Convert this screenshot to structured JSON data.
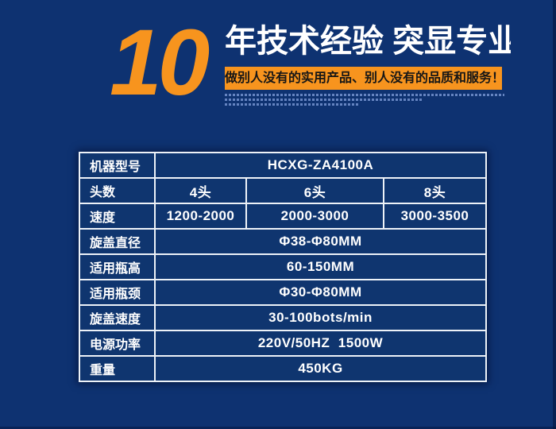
{
  "theme": {
    "background_color": "#0e3271",
    "accent_orange": "#f7941e",
    "table_cell_color": "#0f356f",
    "table_border_color": "#edf2f8",
    "headline_text_color": "#ffffff",
    "banner_text_color": "#161616"
  },
  "header": {
    "years_number": "10",
    "headline": "年技术经验 突显专业",
    "banner_text": "做别人没有的实用产品、别人没有的品质和服务！"
  },
  "spec_table": {
    "rows": [
      {
        "label": "机器型号",
        "value": "HCXG-ZA4100A"
      },
      {
        "label": "头数",
        "values": [
          "4头",
          "6头",
          "8头"
        ]
      },
      {
        "label": "速度",
        "values": [
          "1200-2000",
          "2000-3000",
          "3000-3500"
        ]
      },
      {
        "label": "旋盖直径",
        "value": "Φ38-Φ80MM"
      },
      {
        "label": "适用瓶高",
        "value": "60-150MM"
      },
      {
        "label": "适用瓶颈",
        "value": "Φ30-Φ80MM"
      },
      {
        "label": "旋盖速度",
        "value": "30-100bots/min"
      },
      {
        "label": "电源功率",
        "value": "220V/50HZ  1500W"
      },
      {
        "label": "重量",
        "value": "450KG"
      }
    ]
  }
}
